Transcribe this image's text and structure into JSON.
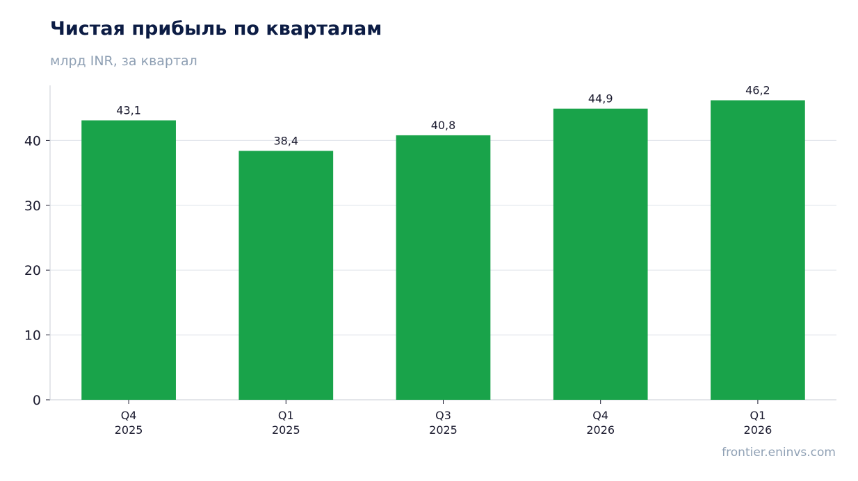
{
  "chart_data": {
    "type": "bar",
    "title": "Чистая прибыль по кварталам",
    "subtitle": "млрд INR, за квартал",
    "categories": [
      [
        "Q4",
        "2025"
      ],
      [
        "Q1",
        "2025"
      ],
      [
        "Q3",
        "2025"
      ],
      [
        "Q4",
        "2026"
      ],
      [
        "Q1",
        "2026"
      ]
    ],
    "values": [
      43.1,
      38.4,
      40.8,
      44.9,
      46.2
    ],
    "value_labels": [
      "43,1",
      "38,4",
      "40,8",
      "44,9",
      "46,2"
    ],
    "yticks": [
      0,
      10,
      20,
      30,
      40
    ],
    "ylim": [
      0,
      48.5
    ],
    "xlabel": "",
    "ylabel": "",
    "grid": true,
    "bar_color": "#19a34a"
  },
  "source": "frontier.eninvs.com",
  "colors": {
    "title": "#0c1c44",
    "subtitle": "#8fa0b4",
    "grid": "#e2e6ec",
    "axis": "#c8ced6",
    "tick_text": "#1a1a2e",
    "bar": "#19a34a"
  }
}
